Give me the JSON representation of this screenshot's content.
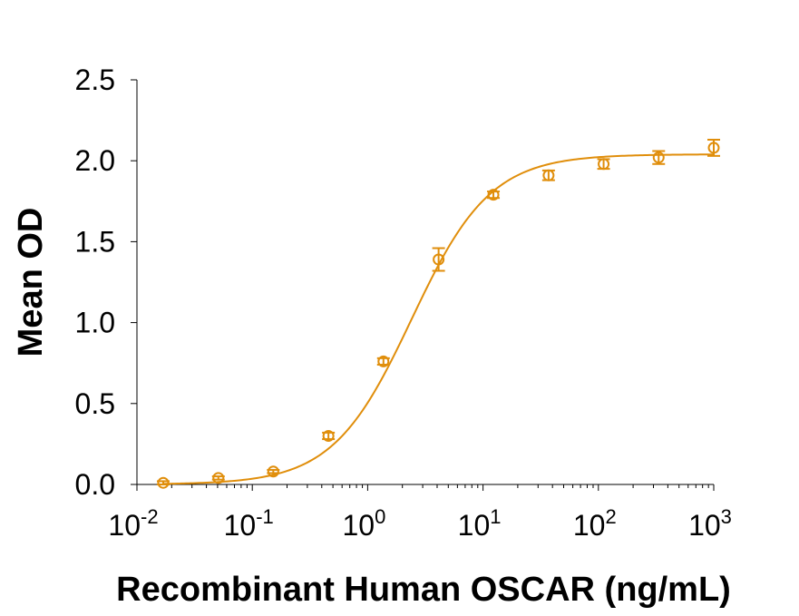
{
  "chart_data": {
    "type": "scatter",
    "title": "",
    "xlabel": "Recombinant Human OSCAR (ng/mL)",
    "ylabel": "Mean OD",
    "x_scale": "log",
    "xlim": [
      0.01,
      1000
    ],
    "ylim": [
      0,
      2.5
    ],
    "x_ticks": [
      {
        "value": 0.01,
        "base": "10",
        "exp": "-2"
      },
      {
        "value": 0.1,
        "base": "10",
        "exp": "-1"
      },
      {
        "value": 1,
        "base": "10",
        "exp": "0"
      },
      {
        "value": 10,
        "base": "10",
        "exp": "1"
      },
      {
        "value": 100,
        "base": "10",
        "exp": "2"
      },
      {
        "value": 1000,
        "base": "10",
        "exp": "3"
      }
    ],
    "y_ticks": [
      {
        "value": 0,
        "label": "0.0"
      },
      {
        "value": 0.5,
        "label": "0.5"
      },
      {
        "value": 1.0,
        "label": "1.0"
      },
      {
        "value": 1.5,
        "label": "1.5"
      },
      {
        "value": 2.0,
        "label": "2.0"
      },
      {
        "value": 2.5,
        "label": "2.5"
      }
    ],
    "grid": false,
    "color": "#E08E0B",
    "series": [
      {
        "points": [
          {
            "x": 0.0169,
            "y": 0.01,
            "err": 0.01
          },
          {
            "x": 0.0508,
            "y": 0.04,
            "err": 0.01
          },
          {
            "x": 0.152,
            "y": 0.08,
            "err": 0.01
          },
          {
            "x": 0.457,
            "y": 0.3,
            "err": 0.02
          },
          {
            "x": 1.37,
            "y": 0.76,
            "err": 0.02
          },
          {
            "x": 4.12,
            "y": 1.39,
            "err": 0.07
          },
          {
            "x": 12.3,
            "y": 1.79,
            "err": 0.02
          },
          {
            "x": 37.0,
            "y": 1.91,
            "err": 0.03
          },
          {
            "x": 111,
            "y": 1.98,
            "err": 0.03
          },
          {
            "x": 333,
            "y": 2.02,
            "err": 0.04
          },
          {
            "x": 1000,
            "y": 2.08,
            "err": 0.05
          }
        ],
        "fit": {
          "model": "4PL",
          "bottom": 0.0,
          "top": 2.04,
          "ec50": 2.4,
          "hill": 1.27
        }
      }
    ]
  }
}
